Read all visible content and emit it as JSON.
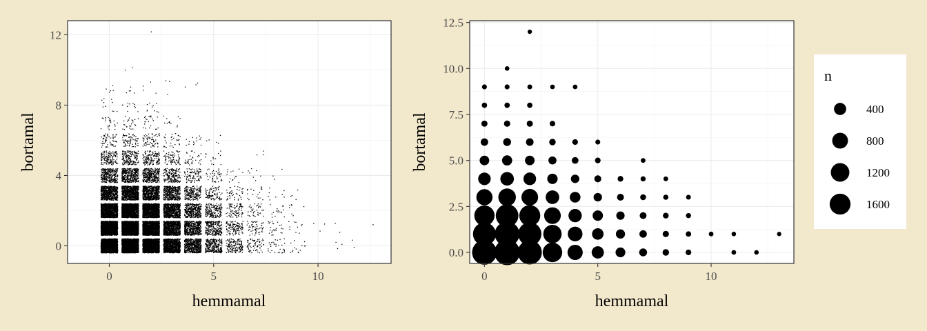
{
  "chart_data": [
    {
      "type": "scatter",
      "title": "",
      "xlabel": "hemmamal",
      "ylabel": "bortamal",
      "xlim": [
        -2,
        13.5
      ],
      "ylim": [
        -1,
        12.8
      ],
      "x_ticks": [
        0,
        5,
        10
      ],
      "y_ticks": [
        0,
        4,
        8,
        12
      ],
      "jitter": {
        "x": 0.4,
        "y": 0.4
      },
      "grid": true,
      "point_color": "#000000",
      "counts": [
        {
          "x": 0,
          "y": 0,
          "n": 1850
        },
        {
          "x": 0,
          "y": 1,
          "n": 1550
        },
        {
          "x": 0,
          "y": 2,
          "n": 1150
        },
        {
          "x": 0,
          "y": 3,
          "n": 650
        },
        {
          "x": 0,
          "y": 4,
          "n": 320
        },
        {
          "x": 0,
          "y": 5,
          "n": 140
        },
        {
          "x": 0,
          "y": 6,
          "n": 55
        },
        {
          "x": 0,
          "y": 7,
          "n": 22
        },
        {
          "x": 0,
          "y": 8,
          "n": 10
        },
        {
          "x": 0,
          "y": 9,
          "n": 5
        },
        {
          "x": 1,
          "y": 0,
          "n": 2000
        },
        {
          "x": 1,
          "y": 1,
          "n": 1850
        },
        {
          "x": 1,
          "y": 2,
          "n": 1500
        },
        {
          "x": 1,
          "y": 3,
          "n": 800
        },
        {
          "x": 1,
          "y": 4,
          "n": 400
        },
        {
          "x": 1,
          "y": 5,
          "n": 170
        },
        {
          "x": 1,
          "y": 6,
          "n": 70
        },
        {
          "x": 1,
          "y": 7,
          "n": 25
        },
        {
          "x": 1,
          "y": 8,
          "n": 10
        },
        {
          "x": 1,
          "y": 9,
          "n": 5
        },
        {
          "x": 1,
          "y": 10,
          "n": 2
        },
        {
          "x": 2,
          "y": 0,
          "n": 1750
        },
        {
          "x": 2,
          "y": 1,
          "n": 1600
        },
        {
          "x": 2,
          "y": 2,
          "n": 1250
        },
        {
          "x": 2,
          "y": 3,
          "n": 700
        },
        {
          "x": 2,
          "y": 4,
          "n": 330
        },
        {
          "x": 2,
          "y": 5,
          "n": 140
        },
        {
          "x": 2,
          "y": 6,
          "n": 60
        },
        {
          "x": 2,
          "y": 7,
          "n": 22
        },
        {
          "x": 2,
          "y": 8,
          "n": 10
        },
        {
          "x": 2,
          "y": 9,
          "n": 4
        },
        {
          "x": 2,
          "y": 12,
          "n": 1
        },
        {
          "x": 3,
          "y": 0,
          "n": 1050
        },
        {
          "x": 3,
          "y": 1,
          "n": 900
        },
        {
          "x": 3,
          "y": 2,
          "n": 700
        },
        {
          "x": 3,
          "y": 3,
          "n": 400
        },
        {
          "x": 3,
          "y": 4,
          "n": 180
        },
        {
          "x": 3,
          "y": 5,
          "n": 75
        },
        {
          "x": 3,
          "y": 6,
          "n": 30
        },
        {
          "x": 3,
          "y": 7,
          "n": 12
        },
        {
          "x": 3,
          "y": 9,
          "n": 3
        },
        {
          "x": 4,
          "y": 0,
          "n": 550
        },
        {
          "x": 4,
          "y": 1,
          "n": 500
        },
        {
          "x": 4,
          "y": 2,
          "n": 380
        },
        {
          "x": 4,
          "y": 3,
          "n": 200
        },
        {
          "x": 4,
          "y": 4,
          "n": 90
        },
        {
          "x": 4,
          "y": 5,
          "n": 35
        },
        {
          "x": 4,
          "y": 6,
          "n": 14
        },
        {
          "x": 4,
          "y": 9,
          "n": 3
        },
        {
          "x": 5,
          "y": 0,
          "n": 300
        },
        {
          "x": 5,
          "y": 1,
          "n": 250
        },
        {
          "x": 5,
          "y": 2,
          "n": 180
        },
        {
          "x": 5,
          "y": 3,
          "n": 90
        },
        {
          "x": 5,
          "y": 4,
          "n": 40
        },
        {
          "x": 5,
          "y": 5,
          "n": 14
        },
        {
          "x": 5,
          "y": 6,
          "n": 5
        },
        {
          "x": 6,
          "y": 0,
          "n": 150
        },
        {
          "x": 6,
          "y": 1,
          "n": 120
        },
        {
          "x": 6,
          "y": 2,
          "n": 85
        },
        {
          "x": 6,
          "y": 3,
          "n": 40
        },
        {
          "x": 6,
          "y": 4,
          "n": 15
        },
        {
          "x": 7,
          "y": 0,
          "n": 70
        },
        {
          "x": 7,
          "y": 1,
          "n": 55
        },
        {
          "x": 7,
          "y": 2,
          "n": 38
        },
        {
          "x": 7,
          "y": 3,
          "n": 18
        },
        {
          "x": 7,
          "y": 4,
          "n": 7
        },
        {
          "x": 7,
          "y": 5,
          "n": 3
        },
        {
          "x": 8,
          "y": 0,
          "n": 30
        },
        {
          "x": 8,
          "y": 1,
          "n": 25
        },
        {
          "x": 8,
          "y": 2,
          "n": 16
        },
        {
          "x": 8,
          "y": 3,
          "n": 8
        },
        {
          "x": 8,
          "y": 4,
          "n": 3
        },
        {
          "x": 9,
          "y": 0,
          "n": 14
        },
        {
          "x": 9,
          "y": 1,
          "n": 10
        },
        {
          "x": 9,
          "y": 2,
          "n": 7
        },
        {
          "x": 9,
          "y": 3,
          "n": 4
        },
        {
          "x": 10,
          "y": 1,
          "n": 3
        },
        {
          "x": 11,
          "y": 0,
          "n": 3
        },
        {
          "x": 11,
          "y": 1,
          "n": 2
        },
        {
          "x": 12,
          "y": 0,
          "n": 2
        },
        {
          "x": 13,
          "y": 1,
          "n": 1
        }
      ]
    },
    {
      "type": "scatter",
      "title": "",
      "xlabel": "hemmamal",
      "ylabel": "bortamal",
      "xlim": [
        -0.65,
        13.65
      ],
      "ylim": [
        -0.6,
        12.6
      ],
      "x_ticks": [
        0,
        5,
        10
      ],
      "y_ticks": [
        0.0,
        2.5,
        5.0,
        7.5,
        10.0,
        12.5
      ],
      "y_tick_labels": [
        "0.0",
        "2.5",
        "5.0",
        "7.5",
        "10.0",
        "12.5"
      ],
      "size_variable": "n",
      "size_range_n": [
        1,
        2000
      ],
      "grid": true,
      "legend": {
        "title": "n",
        "position": "right",
        "entries": [
          {
            "label": "400",
            "n": 400
          },
          {
            "label": "800",
            "n": 800
          },
          {
            "label": "1200",
            "n": 1200
          },
          {
            "label": "1600",
            "n": 1600
          }
        ]
      }
    }
  ]
}
